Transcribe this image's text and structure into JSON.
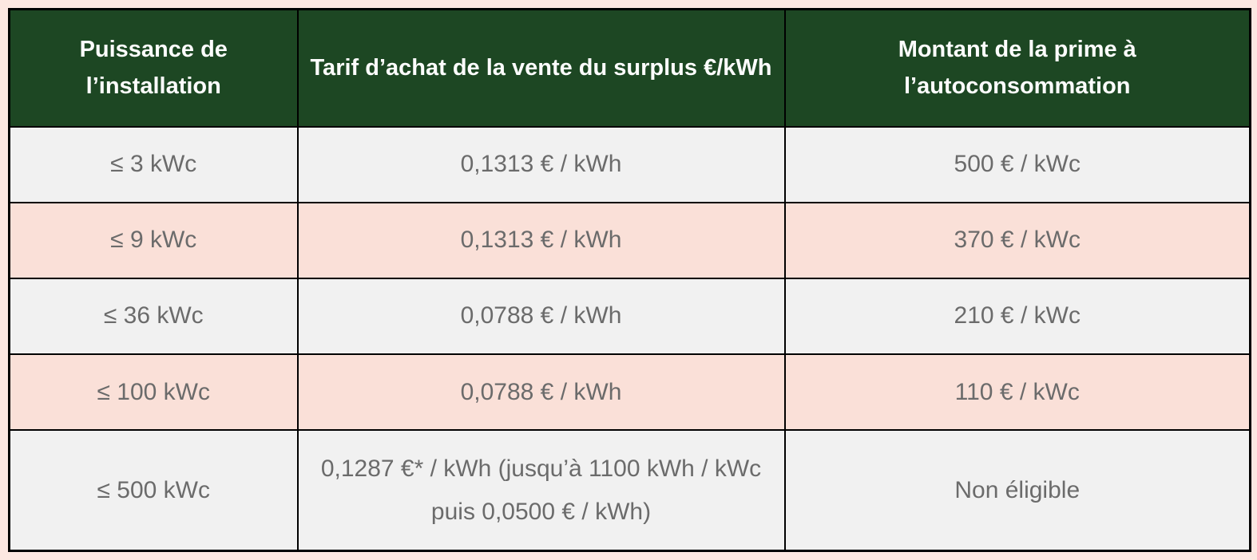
{
  "theme": {
    "page_background": "#fce7e1",
    "header_background": "#1d4723",
    "header_text_color": "#fdfdfd",
    "row_gray": "#f1f1f1",
    "row_pink": "#fae0d8",
    "cell_text_color": "#6b6b6b",
    "border_color": "#000000"
  },
  "table": {
    "columns": [
      {
        "label": "Puissance de l’installation"
      },
      {
        "label": "Tarif d’achat de la vente du surplus €/kWh"
      },
      {
        "label": "Montant de la prime à l’autoconsommation"
      }
    ],
    "rows": [
      {
        "puissance": "≤ 3 kWc",
        "tarif": "0,1313 € / kWh",
        "prime": "500 € / kWc"
      },
      {
        "puissance": "≤ 9 kWc",
        "tarif": "0,1313 € / kWh",
        "prime": "370 € / kWc"
      },
      {
        "puissance": "≤ 36 kWc",
        "tarif": "0,0788 € / kWh",
        "prime": "210 € / kWc"
      },
      {
        "puissance": "≤ 100 kWc",
        "tarif": "0,0788 € / kWh",
        "prime": "110 € / kWc"
      },
      {
        "puissance": "≤ 500 kWc",
        "tarif": "0,1287 €* / kWh (jusqu’à 1100 kWh / kWc puis 0,0500 € / kWh)",
        "prime": "Non éligible"
      }
    ]
  }
}
